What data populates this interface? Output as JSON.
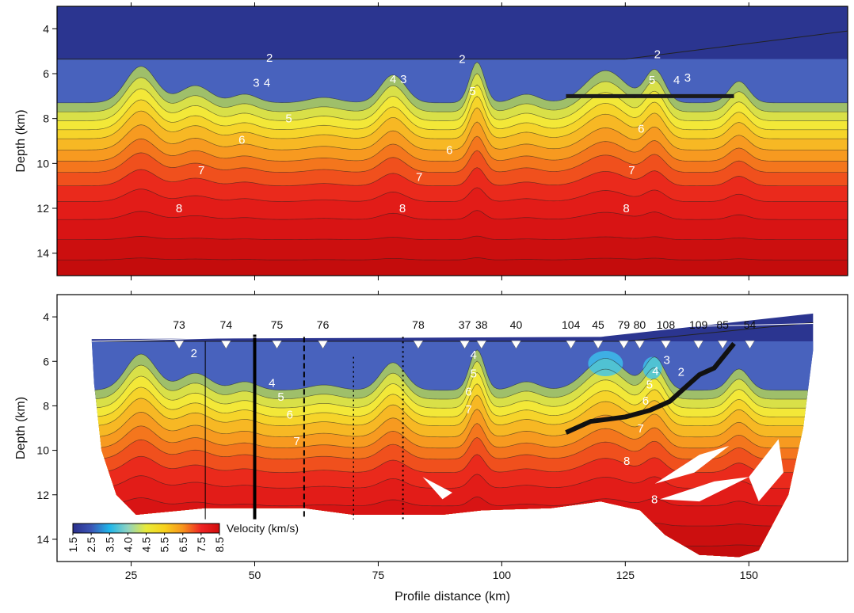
{
  "chart_data": [
    {
      "type": "contour",
      "ylabel": "Depth (km)",
      "xlim": [
        10,
        170
      ],
      "ylim": [
        15,
        3
      ],
      "yticks": [
        4,
        6,
        8,
        10,
        12,
        14
      ],
      "contour_labels": [
        {
          "value": 2,
          "x": 53.0,
          "y": 5.3
        },
        {
          "value": 3,
          "x": 50.3,
          "y": 6.4
        },
        {
          "value": 4,
          "x": 52.5,
          "y": 6.4
        },
        {
          "value": 5,
          "x": 56.9,
          "y": 8.0
        },
        {
          "value": 6,
          "x": 47.4,
          "y": 8.95
        },
        {
          "value": 7,
          "x": 39.2,
          "y": 10.3
        },
        {
          "value": 8,
          "x": 34.7,
          "y": 12.0
        },
        {
          "value": 4,
          "x": 78.0,
          "y": 6.25
        },
        {
          "value": 3,
          "x": 80.1,
          "y": 6.25
        },
        {
          "value": 2,
          "x": 92.0,
          "y": 5.35
        },
        {
          "value": 5,
          "x": 94.1,
          "y": 6.77
        },
        {
          "value": 6,
          "x": 89.4,
          "y": 9.4
        },
        {
          "value": 7,
          "x": 83.3,
          "y": 10.6
        },
        {
          "value": 8,
          "x": 79.9,
          "y": 12.0
        },
        {
          "value": 2,
          "x": 131.5,
          "y": 5.14
        },
        {
          "value": 5,
          "x": 130.4,
          "y": 6.28
        },
        {
          "value": 4,
          "x": 135.4,
          "y": 6.28
        },
        {
          "value": 3,
          "x": 137.6,
          "y": 6.17
        },
        {
          "value": 6,
          "x": 128.2,
          "y": 8.45
        },
        {
          "value": 7,
          "x": 126.3,
          "y": 10.3
        },
        {
          "value": 8,
          "x": 125.2,
          "y": 12.0
        }
      ]
    },
    {
      "type": "contour",
      "xlabel": "Profile distance (km)",
      "ylabel": "Depth (km)",
      "xlim": [
        10,
        170
      ],
      "ylim": [
        15,
        3
      ],
      "xticks": [
        25,
        50,
        75,
        100,
        125,
        150
      ],
      "yticks": [
        4,
        6,
        8,
        10,
        12,
        14
      ],
      "stations": [
        {
          "name": "73",
          "x": 34.7
        },
        {
          "name": "74",
          "x": 44.2
        },
        {
          "name": "75",
          "x": 54.5
        },
        {
          "name": "76",
          "x": 63.8
        },
        {
          "name": "78",
          "x": 83.1
        },
        {
          "name": "37",
          "x": 92.5
        },
        {
          "name": "38",
          "x": 95.9
        },
        {
          "name": "40",
          "x": 102.9
        },
        {
          "name": "104",
          "x": 114.0
        },
        {
          "name": "45",
          "x": 119.5
        },
        {
          "name": "79",
          "x": 124.7
        },
        {
          "name": "80",
          "x": 127.9
        },
        {
          "name": "108",
          "x": 133.2
        },
        {
          "name": "109",
          "x": 139.8
        },
        {
          "name": "85",
          "x": 144.7
        },
        {
          "name": "54",
          "x": 150.2
        }
      ],
      "contour_labels": [
        {
          "value": 2,
          "x": 37.7,
          "y": 5.63
        },
        {
          "value": 4,
          "x": 53.5,
          "y": 6.97
        },
        {
          "value": 5,
          "x": 55.3,
          "y": 7.6
        },
        {
          "value": 6,
          "x": 57.1,
          "y": 8.4
        },
        {
          "value": 7,
          "x": 58.5,
          "y": 9.58
        },
        {
          "value": 4,
          "x": 94.3,
          "y": 5.7
        },
        {
          "value": 5,
          "x": 94.3,
          "y": 6.54
        },
        {
          "value": 6,
          "x": 93.3,
          "y": 7.36
        },
        {
          "value": 7,
          "x": 93.3,
          "y": 8.17
        },
        {
          "value": 2,
          "x": 136.3,
          "y": 6.47
        },
        {
          "value": 3,
          "x": 133.4,
          "y": 5.94
        },
        {
          "value": 4,
          "x": 131.1,
          "y": 6.44
        },
        {
          "value": 5,
          "x": 129.9,
          "y": 7.04
        },
        {
          "value": 6,
          "x": 129.1,
          "y": 7.78
        },
        {
          "value": 7,
          "x": 128.1,
          "y": 9.02
        },
        {
          "value": 8,
          "x": 125.3,
          "y": 10.47
        },
        {
          "value": 8,
          "x": 130.9,
          "y": 12.2
        }
      ],
      "colorbar": {
        "label": "Velocity (km/s)",
        "ticks": [
          1.5,
          2.5,
          3.5,
          {
            "value": 4,
            "label": "4.0"
          },
          4.5,
          5.5,
          6.5,
          7.5,
          8.5
        ],
        "colors": [
          "#2b2f8c",
          "#3b55b5",
          "#20b6ea",
          "#8fd3c0",
          "#e8ea3a",
          "#f7d21c",
          "#f7941d",
          "#ee2424",
          "#d10c0c"
        ]
      }
    }
  ]
}
